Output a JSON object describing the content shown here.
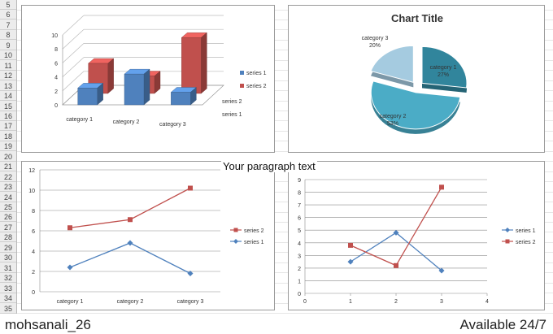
{
  "row_numbers": [
    "5",
    "6",
    "7",
    "8",
    "9",
    "10",
    "11",
    "12",
    "13",
    "14",
    "15",
    "16",
    "17",
    "18",
    "19",
    "20",
    "21",
    "22",
    "23",
    "24",
    "25",
    "26",
    "27",
    "28",
    "29",
    "30",
    "31",
    "32",
    "33",
    "34",
    "35"
  ],
  "paragraph_text": "Your paragraph text",
  "footer": {
    "left": "mohsanali_26",
    "right": "Available 24/7"
  },
  "colors": {
    "series1": "#4f81bd",
    "series2": "#c0504d",
    "pie1": "#31859c",
    "pie2": "#4bacc6",
    "pie3": "#a5cbe0"
  },
  "chart_data": [
    {
      "type": "bar",
      "subtype": "3d-column",
      "categories": [
        "category 1",
        "category 2",
        "category 3"
      ],
      "series": [
        {
          "name": "series 1",
          "values": [
            2.4,
            4.4,
            1.8
          ]
        },
        {
          "name": "series 2",
          "values": [
            4.3,
            2.5,
            8.0
          ]
        }
      ],
      "depth_labels": [
        "series 2",
        "series 1"
      ],
      "yticks": [
        "0",
        "2",
        "4",
        "6",
        "8",
        "10"
      ],
      "ylim": [
        0,
        10
      ],
      "legend": "right"
    },
    {
      "type": "pie",
      "title": "Chart Title",
      "slices": [
        {
          "label": "category 1",
          "value": 27,
          "pct": "27%"
        },
        {
          "label": "category 2",
          "value": 53,
          "pct": "53%"
        },
        {
          "label": "category 3",
          "value": 20,
          "pct": "20%"
        }
      ],
      "exploded": true
    },
    {
      "type": "line",
      "categories": [
        "category 1",
        "category 2",
        "category 3"
      ],
      "series": [
        {
          "name": "series 2",
          "values": [
            6.3,
            7.1,
            10.2
          ]
        },
        {
          "name": "series 1",
          "values": [
            2.4,
            4.8,
            1.8
          ]
        }
      ],
      "yticks": [
        "0",
        "2",
        "4",
        "6",
        "8",
        "10",
        "12"
      ],
      "ylim": [
        0,
        12
      ],
      "grid": true,
      "legend": "right"
    },
    {
      "type": "scatter",
      "series": [
        {
          "name": "series 1",
          "points": [
            [
              1,
              2.5
            ],
            [
              2,
              4.8
            ],
            [
              3,
              1.8
            ]
          ]
        },
        {
          "name": "series 2",
          "points": [
            [
              1,
              3.8
            ],
            [
              2,
              2.2
            ],
            [
              3,
              8.4
            ]
          ]
        }
      ],
      "xticks": [
        "0",
        "1",
        "2",
        "3",
        "4"
      ],
      "yticks": [
        "0",
        "1",
        "2",
        "3",
        "4",
        "5",
        "6",
        "7",
        "8",
        "9"
      ],
      "xlim": [
        0,
        4
      ],
      "ylim": [
        0,
        9
      ],
      "grid": true,
      "legend": "right"
    }
  ]
}
